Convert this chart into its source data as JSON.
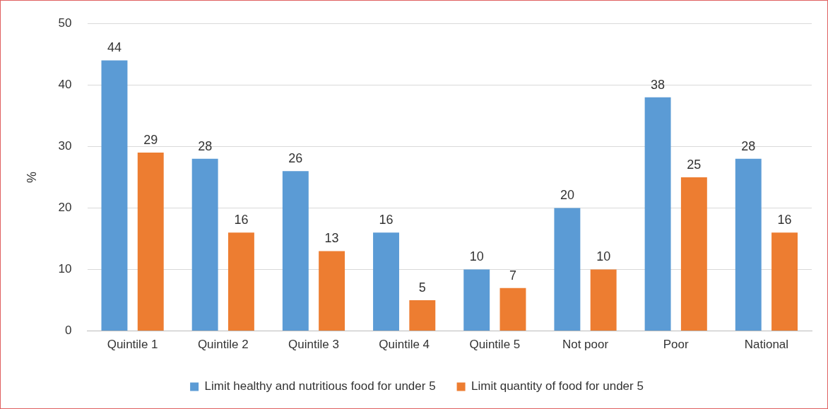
{
  "chart_data": {
    "type": "bar",
    "categories": [
      "Quintile 1",
      "Quintile 2",
      "Quintile 3",
      "Quintile 4",
      "Quintile 5",
      "Not poor",
      "Poor",
      "National"
    ],
    "series": [
      {
        "name": "Limit healthy and nutritious food for under 5",
        "color": "#5b9bd5",
        "values": [
          44,
          28,
          26,
          16,
          10,
          20,
          38,
          28
        ]
      },
      {
        "name": "Limit quantity of food for under 5",
        "color": "#ed7d31",
        "values": [
          29,
          16,
          13,
          5,
          7,
          10,
          25,
          16
        ]
      }
    ],
    "ylabel": "%",
    "ylim": [
      0,
      50
    ],
    "yticks": [
      0,
      10,
      20,
      30,
      40,
      50
    ],
    "grid": "y",
    "legend": "bottom",
    "data_labels": true
  }
}
